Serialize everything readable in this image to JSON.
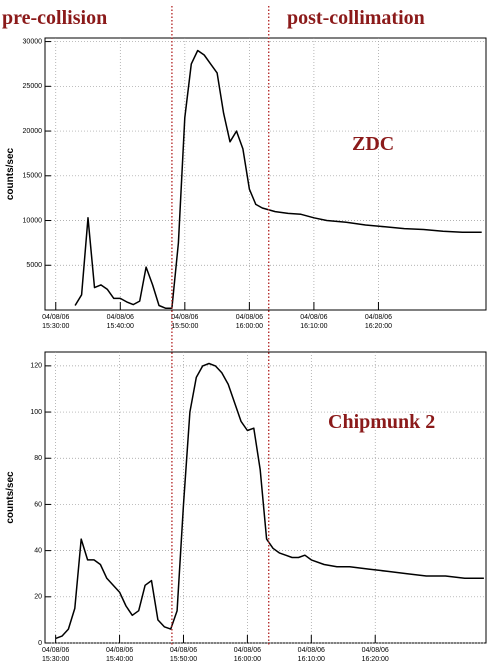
{
  "headers": [
    "pre-collision",
    "post-collimation"
  ],
  "markers": [
    "2006-04-08 15:48:00",
    "2006-04-08 16:03:00"
  ],
  "chart_data": [
    {
      "type": "line",
      "ylabel": "counts/sec",
      "annotation": "ZDC",
      "color": "#000000",
      "grid": true,
      "x": [
        "2006-04-08 15:33:00",
        "2006-04-08 15:34:00",
        "2006-04-08 15:35:00",
        "2006-04-08 15:36:00",
        "2006-04-08 15:37:00",
        "2006-04-08 15:38:00",
        "2006-04-08 15:39:00",
        "2006-04-08 15:40:00",
        "2006-04-08 15:41:00",
        "2006-04-08 15:42:00",
        "2006-04-08 15:43:00",
        "2006-04-08 15:44:00",
        "2006-04-08 15:45:00",
        "2006-04-08 15:46:00",
        "2006-04-08 15:47:00",
        "2006-04-08 15:48:00",
        "2006-04-08 15:49:00",
        "2006-04-08 15:50:00",
        "2006-04-08 15:51:00",
        "2006-04-08 15:52:00",
        "2006-04-08 15:53:00",
        "2006-04-08 15:54:00",
        "2006-04-08 15:55:00",
        "2006-04-08 15:56:00",
        "2006-04-08 15:57:00",
        "2006-04-08 15:58:00",
        "2006-04-08 15:59:00",
        "2006-04-08 16:00:00",
        "2006-04-08 16:01:00",
        "2006-04-08 16:02:00",
        "2006-04-08 16:04:00",
        "2006-04-08 16:06:00",
        "2006-04-08 16:08:00",
        "2006-04-08 16:10:00",
        "2006-04-08 16:12:00",
        "2006-04-08 16:15:00",
        "2006-04-08 16:18:00",
        "2006-04-08 16:21:00",
        "2006-04-08 16:24:00",
        "2006-04-08 16:27:00",
        "2006-04-08 16:30:00",
        "2006-04-08 16:33:00",
        "2006-04-08 16:36:00"
      ],
      "values": [
        500,
        1700,
        10300,
        2500,
        2800,
        2300,
        1300,
        1300,
        900,
        600,
        1000,
        4800,
        2800,
        500,
        200,
        200,
        7500,
        21500,
        27500,
        29000,
        28500,
        27500,
        26500,
        22000,
        18800,
        20000,
        18000,
        13500,
        11800,
        11400,
        11000,
        10800,
        10700,
        10300,
        10000,
        9800,
        9500,
        9300,
        9100,
        9000,
        8800,
        8700,
        8700
      ],
      "xlim": [
        "2006-04-08 15:28:20",
        "2006-04-08 16:36:40"
      ],
      "xticks": [
        {
          "value": "2006-04-08 15:30:00",
          "label": "04/08/06\n15:30:00"
        },
        {
          "value": "2006-04-08 15:40:00",
          "label": "04/08/06\n15:40:00"
        },
        {
          "value": "2006-04-08 15:50:00",
          "label": "04/08/06\n15:50:00"
        },
        {
          "value": "2006-04-08 16:00:00",
          "label": "04/08/06\n16:00:00"
        },
        {
          "value": "2006-04-08 16:10:00",
          "label": "04/08/06\n16:10:00"
        },
        {
          "value": "2006-04-08 16:20:00",
          "label": "04/08/06\n16:20:00"
        }
      ],
      "ylim": [
        0,
        30400
      ],
      "yticks": [
        5000,
        10000,
        15000,
        20000,
        25000,
        30000
      ]
    },
    {
      "type": "line",
      "ylabel": "counts/sec",
      "annotation": "Chipmunk 2",
      "color": "#000000",
      "grid": true,
      "x": [
        "2006-04-08 15:30:00",
        "2006-04-08 15:31:00",
        "2006-04-08 15:32:00",
        "2006-04-08 15:33:00",
        "2006-04-08 15:34:00",
        "2006-04-08 15:35:00",
        "2006-04-08 15:36:00",
        "2006-04-08 15:37:00",
        "2006-04-08 15:38:00",
        "2006-04-08 15:39:00",
        "2006-04-08 15:40:00",
        "2006-04-08 15:41:00",
        "2006-04-08 15:42:00",
        "2006-04-08 15:43:00",
        "2006-04-08 15:44:00",
        "2006-04-08 15:45:00",
        "2006-04-08 15:46:00",
        "2006-04-08 15:47:00",
        "2006-04-08 15:48:00",
        "2006-04-08 15:49:00",
        "2006-04-08 15:50:00",
        "2006-04-08 15:51:00",
        "2006-04-08 15:52:00",
        "2006-04-08 15:53:00",
        "2006-04-08 15:54:00",
        "2006-04-08 15:55:00",
        "2006-04-08 15:56:00",
        "2006-04-08 15:57:00",
        "2006-04-08 15:58:00",
        "2006-04-08 15:59:00",
        "2006-04-08 16:00:00",
        "2006-04-08 16:01:00",
        "2006-04-08 16:02:00",
        "2006-04-08 16:03:00",
        "2006-04-08 16:04:00",
        "2006-04-08 16:05:00",
        "2006-04-08 16:06:00",
        "2006-04-08 16:07:00",
        "2006-04-08 16:08:00",
        "2006-04-08 16:09:00",
        "2006-04-08 16:10:00",
        "2006-04-08 16:12:00",
        "2006-04-08 16:14:00",
        "2006-04-08 16:16:00",
        "2006-04-08 16:19:00",
        "2006-04-08 16:22:00",
        "2006-04-08 16:25:00",
        "2006-04-08 16:28:00",
        "2006-04-08 16:31:00",
        "2006-04-08 16:34:00",
        "2006-04-08 16:37:00"
      ],
      "values": [
        2,
        3,
        6,
        15,
        45,
        36,
        36,
        34,
        28,
        25,
        22,
        16,
        12,
        14,
        25,
        27,
        10,
        7,
        6,
        14,
        60,
        100,
        115,
        120,
        121,
        120,
        117,
        112,
        104,
        96,
        92,
        93,
        75,
        45,
        41,
        39,
        38,
        37,
        37,
        38,
        36,
        34,
        33,
        33,
        32,
        31,
        30,
        29,
        29,
        28,
        28
      ],
      "xlim": [
        "2006-04-08 15:28:20",
        "2006-04-08 16:37:20"
      ],
      "xticks": [
        {
          "value": "2006-04-08 15:30:00",
          "label": "04/08/06\n15:30:00"
        },
        {
          "value": "2006-04-08 15:40:00",
          "label": "04/08/06\n15:40:00"
        },
        {
          "value": "2006-04-08 15:50:00",
          "label": "04/08/06\n15:50:00"
        },
        {
          "value": "2006-04-08 16:00:00",
          "label": "04/08/06\n16:00:00"
        },
        {
          "value": "2006-04-08 16:10:00",
          "label": "04/08/06\n16:10:00"
        },
        {
          "value": "2006-04-08 16:20:00",
          "label": "04/08/06\n16:20:00"
        }
      ],
      "ylim": [
        0,
        126
      ],
      "yticks": [
        0,
        20,
        40,
        60,
        80,
        100,
        120
      ]
    }
  ]
}
